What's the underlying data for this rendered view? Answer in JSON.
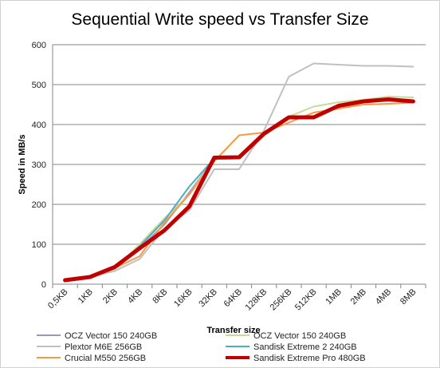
{
  "chart_data": {
    "type": "line",
    "title": "Sequential Write speed vs Transfer Size",
    "xlabel": "Transfer size",
    "ylabel": "Speed in MB/s",
    "ylim": [
      0,
      600
    ],
    "yticks": [
      0,
      100,
      200,
      300,
      400,
      500,
      600
    ],
    "grid": true,
    "legend_position": "bottom",
    "categories": [
      "0,5KB",
      "1KB",
      "2KB",
      "4KB",
      "8KB",
      "16KB",
      "32KB",
      "64KB",
      "128KB",
      "256KB",
      "512KB",
      "1MB",
      "2MB",
      "4MB",
      "8MB"
    ],
    "series": [
      {
        "name": "OCZ Vector 150 240GB",
        "color": "#a294c0",
        "width": 2,
        "values": [
          10,
          18,
          40,
          90,
          150,
          230,
          315,
          318,
          380,
          418,
          420,
          450,
          458,
          462,
          458
        ]
      },
      {
        "name": "OCZ Vector 150 240GB",
        "color": "#c3dc9a",
        "width": 2,
        "values": [
          10,
          18,
          38,
          100,
          165,
          225,
          315,
          318,
          380,
          420,
          445,
          456,
          462,
          470,
          468
        ]
      },
      {
        "name": "Plextor M6E 256GB",
        "color": "#c0c0c0",
        "width": 2,
        "values": [
          10,
          18,
          33,
          63,
          140,
          185,
          288,
          288,
          385,
          520,
          553,
          550,
          547,
          547,
          545
        ]
      },
      {
        "name": "Sandisk Extreme 2 240GB",
        "color": "#4badc6",
        "width": 2,
        "values": [
          10,
          18,
          40,
          95,
          160,
          245,
          315,
          318,
          380,
          415,
          420,
          448,
          458,
          462,
          458
        ]
      },
      {
        "name": "Crucial M550 256GB",
        "color": "#f59a42",
        "width": 2,
        "values": [
          10,
          18,
          40,
          70,
          155,
          225,
          308,
          373,
          380,
          405,
          430,
          440,
          450,
          452,
          455
        ]
      },
      {
        "name": "Sandisk Extreme Pro 480GB",
        "color": "#c00000",
        "width": 5,
        "values": [
          10,
          18,
          43,
          90,
          135,
          195,
          317,
          318,
          377,
          418,
          418,
          447,
          458,
          463,
          458
        ]
      }
    ]
  }
}
